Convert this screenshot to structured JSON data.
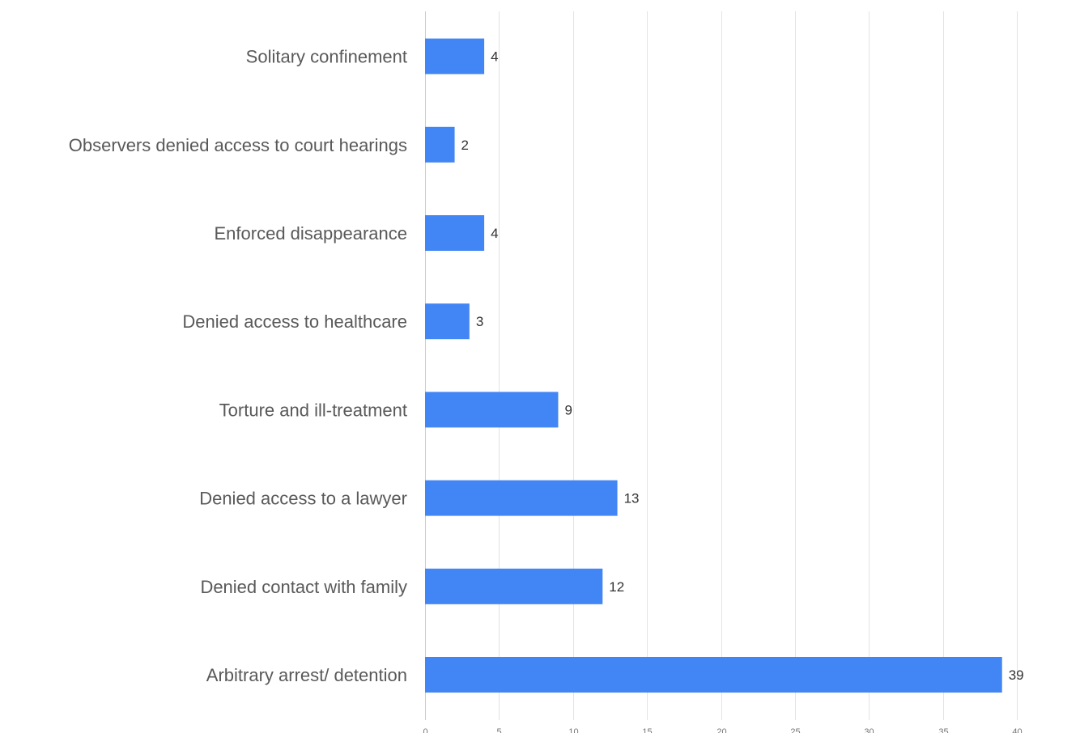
{
  "chart_data": {
    "type": "bar",
    "orientation": "horizontal",
    "categories": [
      "Solitary confinement",
      "Observers denied access to court hearings",
      "Enforced disappearance",
      "Denied access to healthcare",
      "Torture and ill-treatment",
      "Denied access to a lawyer",
      "Denied contact with family",
      "Arbitrary arrest/ detention"
    ],
    "values": [
      4,
      2,
      4,
      3,
      9,
      13,
      12,
      39
    ],
    "data_labels": [
      "4",
      "2",
      "4",
      "3",
      "9",
      "13",
      "12",
      "39"
    ],
    "xlim": [
      0,
      40
    ],
    "x_ticks": [
      0,
      5,
      10,
      15,
      20,
      25,
      30,
      35,
      40
    ],
    "x_tick_labels": [
      "0",
      "5",
      "10",
      "15",
      "20",
      "25",
      "30",
      "35",
      "40"
    ],
    "grid": true,
    "legend": "none",
    "bar_color": "#4285f4"
  }
}
